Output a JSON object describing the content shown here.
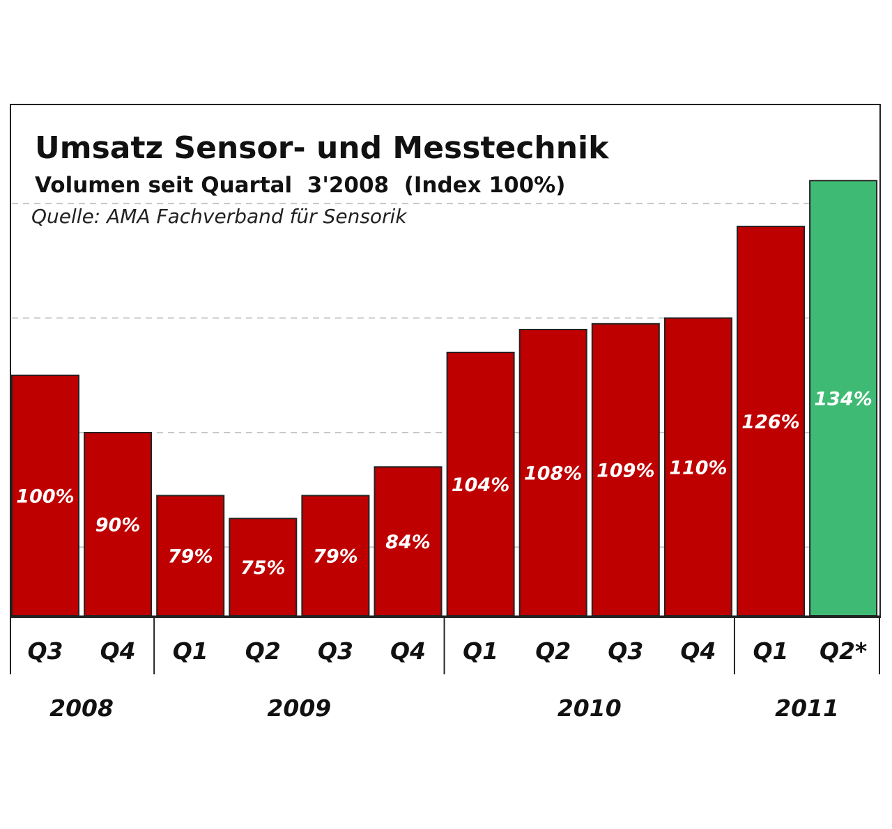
{
  "chart_data": {
    "type": "bar",
    "title": "Umsatz Sensor- und Messtechnik",
    "subtitle": "Volumen seit Quartal  3'2008  (Index 100%)",
    "source": "Quelle: AMA Fachverband für Sensorik",
    "categories": [
      "Q3",
      "Q4",
      "Q1",
      "Q2",
      "Q3",
      "Q4",
      "Q1",
      "Q2",
      "Q3",
      "Q4",
      "Q1",
      "Q2*"
    ],
    "values": [
      100,
      90,
      79,
      75,
      79,
      84,
      104,
      108,
      109,
      110,
      126,
      134
    ],
    "value_labels": [
      "100%",
      "90%",
      "79%",
      "75%",
      "79%",
      "84%",
      "104%",
      "108%",
      "109%",
      "110%",
      "126%",
      "134%"
    ],
    "years": [
      {
        "label": "2008",
        "from": 0,
        "to": 1
      },
      {
        "label": "2009",
        "from": 2,
        "to": 5
      },
      {
        "label": "2010",
        "from": 6,
        "to": 9
      },
      {
        "label": "2011",
        "from": 10,
        "to": 11
      }
    ],
    "highlight_index": 11,
    "colors": {
      "bar": "#bf0000",
      "highlight": "#3fba74"
    },
    "ylim": [
      58,
      140
    ],
    "grid": true
  }
}
